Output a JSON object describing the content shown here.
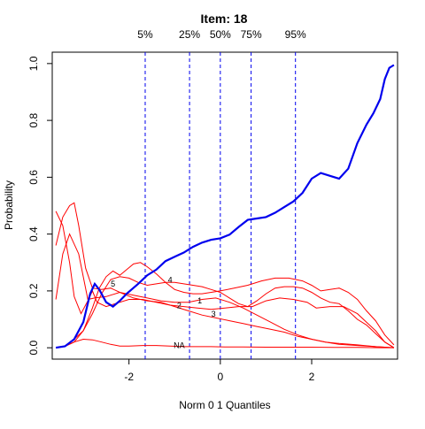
{
  "chart_data": {
    "type": "line",
    "title": "Item:  18",
    "xlabel": "Norm 0 1 Quantiles",
    "ylabel": "Probability",
    "xlim": [
      -3.68,
      3.88
    ],
    "ylim": [
      -0.04,
      1.04
    ],
    "x_ticks": [
      -2,
      0,
      2
    ],
    "x_tick_labels": [
      "-2",
      "0",
      "2"
    ],
    "y_ticks": [
      0.0,
      0.2,
      0.4,
      0.6,
      0.8,
      1.0
    ],
    "y_tick_labels": [
      "0.0",
      "0.2",
      "0.4",
      "0.6",
      "0.8",
      "1.0"
    ],
    "grid": false,
    "legend": "none",
    "quantiles": [
      {
        "label": "5%",
        "x": -1.645
      },
      {
        "label": "25%",
        "x": -0.674
      },
      {
        "label": "50%",
        "x": 0.0
      },
      {
        "label": "75%",
        "x": 0.674
      },
      {
        "label": "95%",
        "x": 1.645
      }
    ],
    "key_curve": {
      "color": "#0000ee",
      "points": [
        [
          -3.6,
          0.0
        ],
        [
          -3.4,
          0.005
        ],
        [
          -3.2,
          0.03
        ],
        [
          -3.0,
          0.09
        ],
        [
          -2.85,
          0.19
        ],
        [
          -2.75,
          0.225
        ],
        [
          -2.65,
          0.205
        ],
        [
          -2.5,
          0.16
        ],
        [
          -2.35,
          0.145
        ],
        [
          -2.2,
          0.165
        ],
        [
          -2.05,
          0.19
        ],
        [
          -1.8,
          0.225
        ],
        [
          -1.6,
          0.255
        ],
        [
          -1.4,
          0.275
        ],
        [
          -1.2,
          0.305
        ],
        [
          -1.0,
          0.32
        ],
        [
          -0.8,
          0.335
        ],
        [
          -0.6,
          0.355
        ],
        [
          -0.4,
          0.37
        ],
        [
          -0.2,
          0.38
        ],
        [
          0.0,
          0.385
        ],
        [
          0.2,
          0.398
        ],
        [
          0.4,
          0.425
        ],
        [
          0.6,
          0.45
        ],
        [
          0.8,
          0.455
        ],
        [
          1.0,
          0.46
        ],
        [
          1.2,
          0.475
        ],
        [
          1.4,
          0.495
        ],
        [
          1.6,
          0.515
        ],
        [
          1.8,
          0.545
        ],
        [
          2.0,
          0.595
        ],
        [
          2.2,
          0.615
        ],
        [
          2.4,
          0.605
        ],
        [
          2.6,
          0.595
        ],
        [
          2.8,
          0.63
        ],
        [
          3.0,
          0.72
        ],
        [
          3.2,
          0.785
        ],
        [
          3.35,
          0.825
        ],
        [
          3.5,
          0.875
        ],
        [
          3.6,
          0.945
        ],
        [
          3.7,
          0.985
        ],
        [
          3.8,
          0.995
        ]
      ]
    },
    "distractor_curves": [
      {
        "label": "1",
        "label_at": [
          -0.45,
          0.165
        ],
        "color": "#ff0000",
        "points": [
          [
            -3.6,
            0.17
          ],
          [
            -3.45,
            0.33
          ],
          [
            -3.3,
            0.4
          ],
          [
            -3.1,
            0.33
          ],
          [
            -2.9,
            0.17
          ],
          [
            -2.75,
            0.175
          ],
          [
            -2.5,
            0.18
          ],
          [
            -2.2,
            0.195
          ],
          [
            -1.9,
            0.185
          ],
          [
            -1.6,
            0.175
          ],
          [
            -1.3,
            0.165
          ],
          [
            -1.0,
            0.16
          ],
          [
            -0.7,
            0.16
          ],
          [
            -0.4,
            0.17
          ],
          [
            -0.1,
            0.175
          ],
          [
            0.2,
            0.16
          ],
          [
            0.5,
            0.14
          ],
          [
            0.8,
            0.115
          ],
          [
            1.1,
            0.09
          ],
          [
            1.4,
            0.065
          ],
          [
            1.7,
            0.045
          ],
          [
            2.0,
            0.03
          ],
          [
            2.3,
            0.02
          ],
          [
            2.6,
            0.012
          ],
          [
            3.0,
            0.008
          ],
          [
            3.4,
            0.004
          ],
          [
            3.8,
            0.0
          ]
        ]
      },
      {
        "label": "2",
        "label_at": [
          -0.9,
          0.148
        ],
        "color": "#ff0000",
        "points": [
          [
            -3.6,
            0.48
          ],
          [
            -3.45,
            0.43
          ],
          [
            -3.3,
            0.3
          ],
          [
            -3.2,
            0.18
          ],
          [
            -3.05,
            0.12
          ],
          [
            -2.9,
            0.165
          ],
          [
            -2.8,
            0.2
          ],
          [
            -2.7,
            0.16
          ],
          [
            -2.5,
            0.145
          ],
          [
            -2.3,
            0.155
          ],
          [
            -2.0,
            0.17
          ],
          [
            -1.7,
            0.17
          ],
          [
            -1.4,
            0.16
          ],
          [
            -1.1,
            0.15
          ],
          [
            -0.8,
            0.145
          ],
          [
            -0.5,
            0.14
          ],
          [
            -0.2,
            0.135
          ],
          [
            0.1,
            0.14
          ],
          [
            0.4,
            0.145
          ],
          [
            0.7,
            0.145
          ],
          [
            1.0,
            0.165
          ],
          [
            1.3,
            0.175
          ],
          [
            1.6,
            0.17
          ],
          [
            1.9,
            0.16
          ],
          [
            2.1,
            0.14
          ],
          [
            2.4,
            0.145
          ],
          [
            2.7,
            0.145
          ],
          [
            3.0,
            0.12
          ],
          [
            3.2,
            0.09
          ],
          [
            3.4,
            0.06
          ],
          [
            3.6,
            0.02
          ],
          [
            3.8,
            0.0
          ]
        ]
      },
      {
        "label": "3",
        "label_at": [
          -0.15,
          0.118
        ],
        "color": "#ff0000",
        "points": [
          [
            -3.6,
            0.36
          ],
          [
            -3.45,
            0.46
          ],
          [
            -3.3,
            0.5
          ],
          [
            -3.2,
            0.51
          ],
          [
            -3.1,
            0.43
          ],
          [
            -2.95,
            0.28
          ],
          [
            -2.8,
            0.21
          ],
          [
            -2.6,
            0.205
          ],
          [
            -2.4,
            0.21
          ],
          [
            -2.2,
            0.195
          ],
          [
            -1.9,
            0.175
          ],
          [
            -1.6,
            0.165
          ],
          [
            -1.3,
            0.16
          ],
          [
            -1.0,
            0.145
          ],
          [
            -0.7,
            0.13
          ],
          [
            -0.4,
            0.115
          ],
          [
            -0.1,
            0.105
          ],
          [
            0.2,
            0.095
          ],
          [
            0.5,
            0.085
          ],
          [
            0.8,
            0.075
          ],
          [
            1.1,
            0.065
          ],
          [
            1.4,
            0.055
          ],
          [
            1.7,
            0.04
          ],
          [
            2.0,
            0.03
          ],
          [
            2.3,
            0.02
          ],
          [
            2.6,
            0.015
          ],
          [
            3.0,
            0.01
          ],
          [
            3.4,
            0.004
          ],
          [
            3.8,
            0.0
          ]
        ]
      },
      {
        "label": "4",
        "label_at": [
          -1.1,
          0.238
        ],
        "color": "#ff0000",
        "points": [
          [
            -3.6,
            0.0
          ],
          [
            -3.4,
            0.005
          ],
          [
            -3.2,
            0.03
          ],
          [
            -3.0,
            0.06
          ],
          [
            -2.8,
            0.12
          ],
          [
            -2.6,
            0.19
          ],
          [
            -2.4,
            0.24
          ],
          [
            -2.2,
            0.25
          ],
          [
            -2.0,
            0.245
          ],
          [
            -1.8,
            0.23
          ],
          [
            -1.6,
            0.22
          ],
          [
            -1.4,
            0.225
          ],
          [
            -1.2,
            0.23
          ],
          [
            -1.0,
            0.23
          ],
          [
            -0.8,
            0.225
          ],
          [
            -0.6,
            0.22
          ],
          [
            -0.4,
            0.215
          ],
          [
            -0.2,
            0.205
          ],
          [
            0.0,
            0.195
          ],
          [
            0.2,
            0.175
          ],
          [
            0.4,
            0.155
          ],
          [
            0.6,
            0.145
          ],
          [
            0.8,
            0.165
          ],
          [
            1.0,
            0.19
          ],
          [
            1.2,
            0.21
          ],
          [
            1.4,
            0.215
          ],
          [
            1.6,
            0.215
          ],
          [
            1.8,
            0.21
          ],
          [
            2.0,
            0.195
          ],
          [
            2.2,
            0.175
          ],
          [
            2.4,
            0.16
          ],
          [
            2.6,
            0.155
          ],
          [
            2.8,
            0.13
          ],
          [
            3.0,
            0.1
          ],
          [
            3.2,
            0.08
          ],
          [
            3.4,
            0.05
          ],
          [
            3.6,
            0.02
          ],
          [
            3.8,
            0.0
          ]
        ]
      },
      {
        "label": "5",
        "label_at": [
          -2.35,
          0.225
        ],
        "color": "#ff0000",
        "points": [
          [
            -3.6,
            0.0
          ],
          [
            -3.4,
            0.005
          ],
          [
            -3.2,
            0.02
          ],
          [
            -3.0,
            0.06
          ],
          [
            -2.8,
            0.14
          ],
          [
            -2.65,
            0.21
          ],
          [
            -2.5,
            0.25
          ],
          [
            -2.35,
            0.27
          ],
          [
            -2.2,
            0.255
          ],
          [
            -2.05,
            0.275
          ],
          [
            -1.9,
            0.295
          ],
          [
            -1.75,
            0.3
          ],
          [
            -1.6,
            0.285
          ],
          [
            -1.4,
            0.26
          ],
          [
            -1.2,
            0.23
          ],
          [
            -1.0,
            0.205
          ],
          [
            -0.8,
            0.195
          ],
          [
            -0.6,
            0.19
          ],
          [
            -0.4,
            0.19
          ],
          [
            -0.2,
            0.195
          ],
          [
            0.0,
            0.2
          ],
          [
            0.3,
            0.21
          ],
          [
            0.6,
            0.22
          ],
          [
            0.9,
            0.235
          ],
          [
            1.2,
            0.245
          ],
          [
            1.5,
            0.245
          ],
          [
            1.8,
            0.235
          ],
          [
            2.0,
            0.22
          ],
          [
            2.2,
            0.2
          ],
          [
            2.4,
            0.205
          ],
          [
            2.6,
            0.21
          ],
          [
            2.8,
            0.195
          ],
          [
            3.0,
            0.17
          ],
          [
            3.2,
            0.13
          ],
          [
            3.4,
            0.095
          ],
          [
            3.6,
            0.045
          ],
          [
            3.8,
            0.01
          ]
        ]
      },
      {
        "label": "NA",
        "label_at": [
          -0.9,
          0.008
        ],
        "color": "#ff0000",
        "points": [
          [
            -3.6,
            0.0
          ],
          [
            -3.4,
            0.005
          ],
          [
            -3.2,
            0.02
          ],
          [
            -3.0,
            0.03
          ],
          [
            -2.8,
            0.028
          ],
          [
            -2.6,
            0.02
          ],
          [
            -2.4,
            0.012
          ],
          [
            -2.2,
            0.006
          ],
          [
            -2.0,
            0.006
          ],
          [
            -1.7,
            0.008
          ],
          [
            -1.4,
            0.008
          ],
          [
            -1.1,
            0.006
          ],
          [
            -0.8,
            0.004
          ],
          [
            -0.5,
            0.004
          ],
          [
            -0.2,
            0.004
          ],
          [
            0.1,
            0.003
          ],
          [
            0.5,
            0.003
          ],
          [
            1.0,
            0.002
          ],
          [
            1.5,
            0.002
          ],
          [
            2.0,
            0.002
          ],
          [
            2.5,
            0.001
          ],
          [
            3.0,
            0.001
          ],
          [
            3.5,
            0.0
          ],
          [
            3.8,
            0.0
          ]
        ]
      }
    ]
  }
}
